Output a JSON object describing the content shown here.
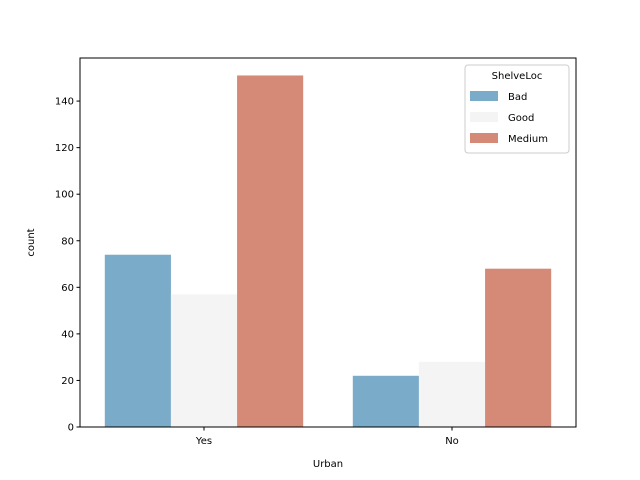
{
  "chart_data": {
    "type": "bar",
    "xlabel": "Urban",
    "ylabel": "count",
    "categories": [
      "Yes",
      "No"
    ],
    "series": [
      {
        "name": "Bad",
        "color": "#7aabc9",
        "values": [
          74,
          22
        ]
      },
      {
        "name": "Good",
        "color": "#f4f4f4",
        "values": [
          57,
          28
        ]
      },
      {
        "name": "Medium",
        "color": "#d58a77",
        "values": [
          151,
          68
        ]
      }
    ],
    "ylim": [
      0,
      158.5
    ],
    "yticks": [
      0,
      20,
      40,
      60,
      80,
      100,
      120,
      140
    ],
    "legend": {
      "title": "ShelveLoc",
      "placement": "top-right"
    },
    "grid": false
  }
}
